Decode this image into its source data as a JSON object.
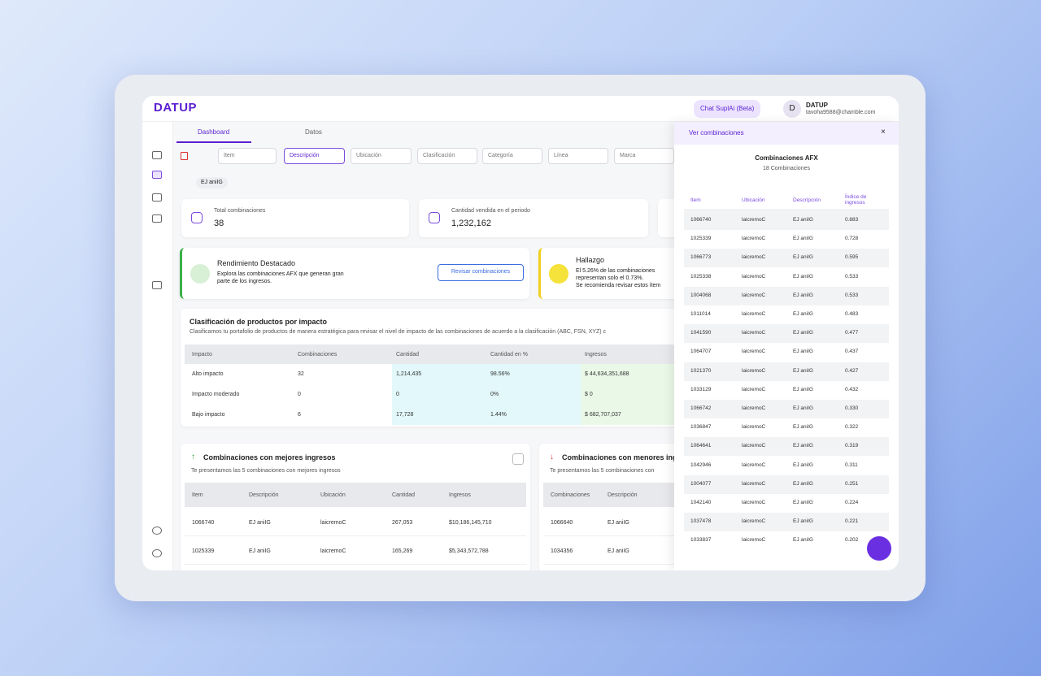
{
  "header": {
    "logo": "DATUP",
    "chat_button": "Chat SuplAi (Beta)",
    "user": {
      "avatar": "D",
      "name": "DATUP",
      "email": "tavoha9588@chamble.com"
    }
  },
  "tabs": [
    "Dashboard",
    "Datos"
  ],
  "filters": [
    "Item",
    "Descripción",
    "Ubicación",
    "Clasificación",
    "Categoría",
    "Línea",
    "Marca"
  ],
  "active_chip": "EJ aniIG",
  "stat_cards": [
    {
      "label": "Total combinaciones",
      "value": "38"
    },
    {
      "label": "Cantidad vendida en el periodo",
      "value": "1,232,162"
    }
  ],
  "highlight": {
    "title": "Rendimiento Destacado",
    "text": [
      "Explora las combinaciones AFX que generan gran",
      "parte de los ingresos."
    ],
    "button": "Revisar combinaciones"
  },
  "finding": {
    "title": "Hallazgo",
    "lines": [
      "El 5.26% de las combinaciones",
      "representan solo el 0.73%.",
      "Se recomienda revisar estos ítem"
    ]
  },
  "impact_table": {
    "title": "Clasificación de productos por impacto",
    "subtitle": "Clasificamos tu portafolio de productos de manera estratégica para revisar el nivel de impacto de las combinaciones de acuerdo a la clasificación (ABC, FSN, XYZ) c",
    "columns": [
      "Impacto",
      "Combinaciones",
      "Cantidad",
      "Cantidad en %",
      "Ingresos"
    ],
    "rows": [
      [
        "Alto impacto",
        "32",
        "1,214,435",
        "98.56%",
        "$ 44,634,351,688"
      ],
      [
        "Impacto moderado",
        "0",
        "0",
        "0%",
        "$ 0"
      ],
      [
        "Bajo impacto",
        "6",
        "17,728",
        "1.44%",
        "$ 682,707,037"
      ]
    ]
  },
  "top_table": {
    "title": "Combinaciones con mejores ingresos",
    "subtitle": "Te presentamos las 5 combinaciones con mejores ingresos",
    "columns": [
      "Item",
      "Descripción",
      "Ubicación",
      "Cantidad",
      "Ingresos"
    ],
    "rows": [
      [
        "1066740",
        "EJ aniIG",
        "laicremoC",
        "267,053",
        "$10,186,145,710"
      ],
      [
        "1025339",
        "EJ aniIG",
        "laicremoC",
        "165,269",
        "$5,343,572,788"
      ]
    ]
  },
  "bottom_table": {
    "title": "Combinaciones con menores ingr",
    "subtitle": "Te presentamos las 5 combinaciones con",
    "columns": [
      "Combinaciones",
      "Descripción"
    ],
    "rows": [
      [
        "1066640",
        "EJ aniIG"
      ],
      [
        "1034356",
        "EJ aniIG"
      ]
    ]
  },
  "panel": {
    "title": "Ver combinaciones",
    "close": "×",
    "subtitle": "Combinaciones AFX",
    "count": "18 Combinaciones",
    "columns": [
      "Item",
      "Ubicación",
      "Descripción",
      "Índice de ingresos"
    ],
    "rows": [
      [
        "1066740",
        "laicremoC",
        "EJ aniIG",
        "0.883"
      ],
      [
        "1025339",
        "laicremoC",
        "EJ aniIG",
        "0.728"
      ],
      [
        "1066773",
        "laicremoC",
        "EJ aniIG",
        "0.595"
      ],
      [
        "1025338",
        "laicremoC",
        "EJ aniIG",
        "0.533"
      ],
      [
        "1004068",
        "laicremoC",
        "EJ aniIG",
        "0.533"
      ],
      [
        "1011014",
        "laicremoC",
        "EJ aniIG",
        "0.483"
      ],
      [
        "1041590",
        "laicremoC",
        "EJ aniIG",
        "0.477"
      ],
      [
        "1064707",
        "laicremoC",
        "EJ aniIG",
        "0.437"
      ],
      [
        "1021370",
        "laicremoC",
        "EJ aniIG",
        "0.427"
      ],
      [
        "1033129",
        "laicremoC",
        "EJ aniIG",
        "0.432"
      ],
      [
        "1066742",
        "laicremoC",
        "EJ aniIG",
        "0.330"
      ],
      [
        "1036847",
        "laicremoC",
        "EJ aniIG",
        "0.322"
      ],
      [
        "1064641",
        "laicremoC",
        "EJ aniIG",
        "0.319"
      ],
      [
        "1042946",
        "laicremoC",
        "EJ aniIG",
        "0.311"
      ],
      [
        "1004077",
        "laicremoC",
        "EJ aniIG",
        "0.251"
      ],
      [
        "1042140",
        "laicremoC",
        "EJ aniIG",
        "0.224"
      ],
      [
        "1037478",
        "laicremoC",
        "EJ aniIG",
        "0.221"
      ],
      [
        "1033837",
        "laicremoC",
        "EJ aniIG",
        "0.202"
      ]
    ]
  }
}
